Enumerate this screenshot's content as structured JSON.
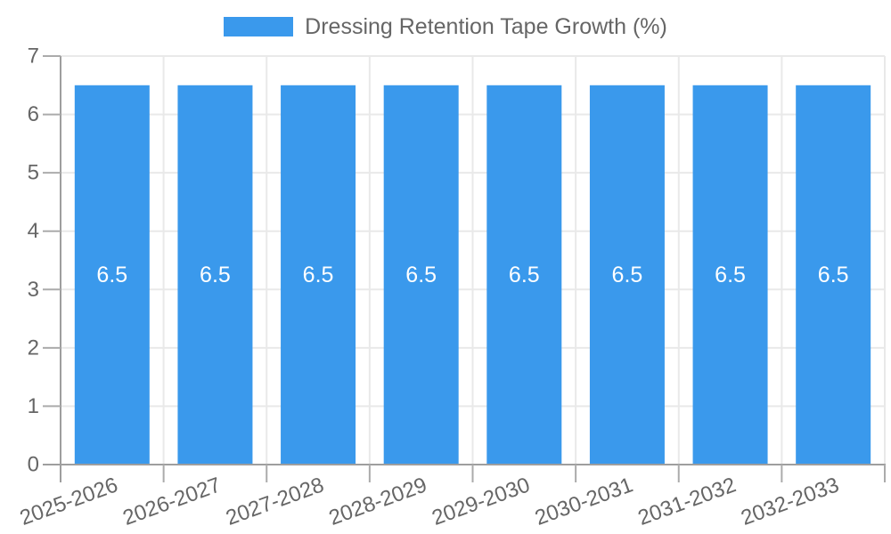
{
  "legend": {
    "label": "Dressing Retention Tape Growth (%)",
    "position": "top"
  },
  "chart_data": {
    "type": "bar",
    "title": "Dressing Retention Tape Growth (%)",
    "series_name": "Dressing Retention Tape Growth (%)",
    "categories": [
      "2025-2026",
      "2026-2027",
      "2027-2028",
      "2028-2029",
      "2029-2030",
      "2030-2031",
      "2031-2032",
      "2032-2033"
    ],
    "values": [
      6.5,
      6.5,
      6.5,
      6.5,
      6.5,
      6.5,
      6.5,
      6.5
    ],
    "value_label_format": "6.5",
    "xlabel": "",
    "ylabel": "",
    "ylim": [
      0,
      7
    ],
    "y_ticks": [
      0,
      1,
      2,
      3,
      4,
      5,
      6,
      7
    ],
    "x_tick_rotation_deg": -20,
    "grid": true,
    "legend_position": "top",
    "bar_color": "#3A99EC",
    "value_label_color": "#FFFFFF",
    "tick_text_color": "#666666",
    "gridline_color": "#E9E9E9",
    "axis_line_color": "#9E9E9E",
    "tick_mark_color": "#ABABAB",
    "background_color": "#FFFFFF"
  }
}
